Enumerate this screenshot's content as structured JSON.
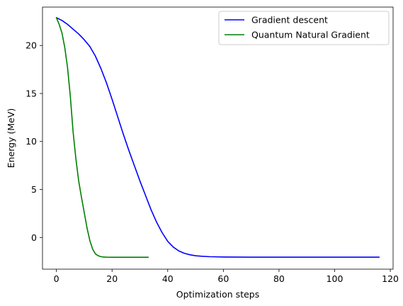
{
  "chart_data": {
    "type": "line",
    "title": "",
    "xlabel": "Optimization steps",
    "ylabel": "Energy (MeV)",
    "xlim": [
      -5,
      121
    ],
    "ylim": [
      -3.3,
      24.0
    ],
    "xticks": [
      0,
      20,
      40,
      60,
      80,
      100,
      120
    ],
    "yticks": [
      0,
      5,
      10,
      15,
      20
    ],
    "xtick_labels": [
      "0",
      "20",
      "40",
      "60",
      "80",
      "100",
      "120"
    ],
    "ytick_labels": [
      "0",
      "5",
      "10",
      "15",
      "20"
    ],
    "grid": false,
    "legend_position": "top-right",
    "series": [
      {
        "name": "Gradient descent",
        "color": "#0000ff",
        "x": [
          0,
          2,
          4,
          6,
          8,
          10,
          12,
          14,
          16,
          18,
          20,
          22,
          24,
          26,
          28,
          30,
          32,
          34,
          36,
          38,
          40,
          42,
          44,
          46,
          48,
          50,
          52,
          55,
          60,
          65,
          70,
          80,
          90,
          100,
          110,
          116
        ],
        "y": [
          22.9,
          22.6,
          22.2,
          21.7,
          21.2,
          20.6,
          19.9,
          18.9,
          17.6,
          16.1,
          14.4,
          12.6,
          10.8,
          9.1,
          7.5,
          5.9,
          4.4,
          2.9,
          1.6,
          0.5,
          -0.4,
          -1.0,
          -1.4,
          -1.65,
          -1.8,
          -1.9,
          -1.95,
          -2.0,
          -2.03,
          -2.04,
          -2.05,
          -2.05,
          -2.05,
          -2.05,
          -2.05,
          -2.05
        ]
      },
      {
        "name": "Quantum Natural Gradient",
        "color": "#008000",
        "x": [
          0,
          1,
          2,
          3,
          4,
          5,
          6,
          7,
          8,
          9,
          10,
          11,
          12,
          13,
          14,
          15,
          16,
          17,
          18,
          20,
          22,
          25,
          30,
          33
        ],
        "y": [
          22.9,
          22.2,
          21.3,
          19.8,
          17.7,
          14.7,
          11.0,
          8.2,
          5.9,
          4.2,
          2.6,
          1.0,
          -0.3,
          -1.2,
          -1.7,
          -1.9,
          -2.0,
          -2.03,
          -2.05,
          -2.06,
          -2.06,
          -2.06,
          -2.06,
          -2.06
        ]
      }
    ]
  }
}
